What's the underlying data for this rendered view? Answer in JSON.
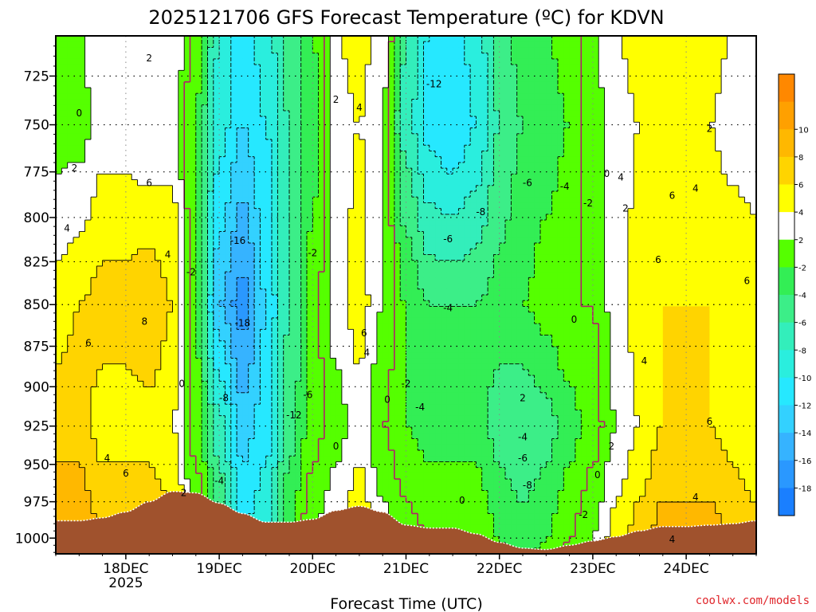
{
  "chart_data": {
    "type": "heatmap",
    "title": "2025121706 GFS Forecast Temperature (ºC) for KDVN",
    "xlabel": "Forecast Time (UTC)",
    "ylabel": "",
    "x_ticks": [
      {
        "value": 18.0,
        "label": "18DEC",
        "sublabel": "2025"
      },
      {
        "value": 19.0,
        "label": "19DEC"
      },
      {
        "value": 20.0,
        "label": "20DEC"
      },
      {
        "value": 21.0,
        "label": "21DEC"
      },
      {
        "value": 22.0,
        "label": "22DEC"
      },
      {
        "value": 23.0,
        "label": "23DEC"
      },
      {
        "value": 24.0,
        "label": "24DEC"
      }
    ],
    "xlim": [
      17.25,
      24.75
    ],
    "y_ticks": [
      725,
      750,
      775,
      800,
      825,
      850,
      875,
      900,
      925,
      950,
      975,
      1000
    ],
    "ylim": [
      705,
      1011
    ],
    "y_scale": "log-pressure",
    "grid": true,
    "colorbar": {
      "levels": [
        -20,
        -18,
        -16,
        -14,
        -12,
        -10,
        -8,
        -6,
        -4,
        -2,
        2,
        4,
        6,
        8,
        10,
        12
      ],
      "labels": [
        -18,
        -16,
        -14,
        -12,
        -10,
        -8,
        -6,
        -4,
        -2,
        2,
        4,
        6,
        8,
        10
      ],
      "colors": [
        "#1a7fff",
        "#2a98ff",
        "#36b3ff",
        "#33d1ff",
        "#26e8ff",
        "#2aeede",
        "#33eebb",
        "#3cee88",
        "#33ee55",
        "#55ff00",
        "#ffffff",
        "#ffff00",
        "#ffd400",
        "#ffb800",
        "#ffa000",
        "#ff8800"
      ]
    },
    "time_axis": [
      17.25,
      17.5,
      17.75,
      18.0,
      18.25,
      18.5,
      18.75,
      19.0,
      19.25,
      19.5,
      19.75,
      20.0,
      20.25,
      20.5,
      20.75,
      21.0,
      21.25,
      21.5,
      21.75,
      22.0,
      22.25,
      22.5,
      22.75,
      23.0,
      23.25,
      23.5,
      23.75,
      24.0,
      24.25,
      24.5,
      24.75
    ],
    "temp_at_750hPa": [
      1,
      1,
      3,
      3,
      2,
      3,
      -2,
      -9,
      -12,
      -10,
      -6,
      -3,
      3,
      4,
      2,
      -7,
      -11,
      -12,
      -10,
      -6,
      -4,
      -3,
      -2,
      1,
      3,
      4,
      5,
      5,
      4,
      3,
      3
    ],
    "temp_at_850hPa": [
      5,
      6,
      7,
      7,
      8,
      6,
      -2,
      -14,
      -17,
      -12,
      -6,
      -1,
      3,
      5,
      2,
      -2,
      -4,
      -4,
      -4,
      -3,
      -2,
      -1,
      0,
      0,
      3,
      5,
      6,
      6,
      6,
      6,
      5
    ],
    "temp_at_925hPa": [
      7,
      7,
      5,
      5,
      5,
      4,
      -1,
      -7,
      -13,
      -11,
      -5,
      -1,
      1,
      3,
      0,
      -2,
      -3,
      -3,
      -3,
      -5,
      -6,
      -5,
      -3,
      -1,
      2,
      4,
      6,
      6,
      6,
      5,
      4
    ],
    "surface_pressure": [
      988,
      988,
      986,
      982,
      975,
      968,
      969,
      976,
      983,
      989,
      989,
      987,
      981,
      978,
      982,
      991,
      993,
      993,
      997,
      1003,
      1007,
      1008,
      1005,
      1002,
      999,
      995,
      992,
      992,
      991,
      990,
      988
    ],
    "contour_labels": [
      {
        "t": 17.5,
        "p": 744,
        "text": "0"
      },
      {
        "t": 17.45,
        "p": 773,
        "text": "2"
      },
      {
        "t": 17.37,
        "p": 806,
        "text": "4"
      },
      {
        "t": 17.6,
        "p": 873,
        "text": "6"
      },
      {
        "t": 18.25,
        "p": 716,
        "text": "2"
      },
      {
        "t": 18.25,
        "p": 781,
        "text": "6"
      },
      {
        "t": 18.45,
        "p": 821,
        "text": "4"
      },
      {
        "t": 18.2,
        "p": 860,
        "text": "8"
      },
      {
        "t": 17.8,
        "p": 946,
        "text": "4"
      },
      {
        "t": 18.0,
        "p": 956,
        "text": "6"
      },
      {
        "t": 18.6,
        "p": 898,
        "text": "0"
      },
      {
        "t": 18.62,
        "p": 969,
        "text": "2"
      },
      {
        "t": 18.7,
        "p": 831,
        "text": "-2"
      },
      {
        "t": 19.05,
        "p": 907,
        "text": "-8"
      },
      {
        "t": 19.0,
        "p": 961,
        "text": "-4"
      },
      {
        "t": 19.2,
        "p": 813,
        "text": "-16"
      },
      {
        "t": 19.25,
        "p": 861,
        "text": "-18"
      },
      {
        "t": 19.8,
        "p": 918,
        "text": "-12"
      },
      {
        "t": 19.95,
        "p": 905,
        "text": "-6"
      },
      {
        "t": 20.0,
        "p": 820,
        "text": "-2"
      },
      {
        "t": 20.25,
        "p": 737,
        "text": "2"
      },
      {
        "t": 20.5,
        "p": 741,
        "text": "4"
      },
      {
        "t": 20.55,
        "p": 867,
        "text": "6"
      },
      {
        "t": 20.58,
        "p": 879,
        "text": "4"
      },
      {
        "t": 20.25,
        "p": 938,
        "text": "0"
      },
      {
        "t": 20.8,
        "p": 908,
        "text": "0"
      },
      {
        "t": 21.0,
        "p": 898,
        "text": "-2"
      },
      {
        "t": 21.3,
        "p": 729,
        "text": "-12"
      },
      {
        "t": 21.15,
        "p": 913,
        "text": "-4"
      },
      {
        "t": 21.45,
        "p": 852,
        "text": "-4"
      },
      {
        "t": 21.45,
        "p": 812,
        "text": "-6"
      },
      {
        "t": 21.8,
        "p": 797,
        "text": "-8"
      },
      {
        "t": 21.6,
        "p": 974,
        "text": "0"
      },
      {
        "t": 22.3,
        "p": 781,
        "text": "-6"
      },
      {
        "t": 22.7,
        "p": 783,
        "text": "-4"
      },
      {
        "t": 22.95,
        "p": 792,
        "text": "-2"
      },
      {
        "t": 22.25,
        "p": 907,
        "text": "2"
      },
      {
        "t": 22.25,
        "p": 932,
        "text": "-4"
      },
      {
        "t": 22.25,
        "p": 946,
        "text": "-6"
      },
      {
        "t": 22.3,
        "p": 964,
        "text": "-8"
      },
      {
        "t": 22.9,
        "p": 984,
        "text": "-2"
      },
      {
        "t": 22.8,
        "p": 859,
        "text": "0"
      },
      {
        "t": 23.15,
        "p": 776,
        "text": "0"
      },
      {
        "t": 23.3,
        "p": 778,
        "text": "4"
      },
      {
        "t": 23.35,
        "p": 795,
        "text": "2"
      },
      {
        "t": 23.7,
        "p": 824,
        "text": "6"
      },
      {
        "t": 23.55,
        "p": 884,
        "text": "4"
      },
      {
        "t": 23.85,
        "p": 788,
        "text": "6"
      },
      {
        "t": 24.1,
        "p": 784,
        "text": "4"
      },
      {
        "t": 24.25,
        "p": 752,
        "text": "2"
      },
      {
        "t": 24.65,
        "p": 836,
        "text": "6"
      },
      {
        "t": 24.25,
        "p": 922,
        "text": "6"
      },
      {
        "t": 24.1,
        "p": 972,
        "text": "4"
      },
      {
        "t": 23.85,
        "p": 1001,
        "text": "4"
      },
      {
        "t": 23.2,
        "p": 938,
        "text": "2"
      },
      {
        "t": 23.05,
        "p": 957,
        "text": "0"
      }
    ]
  },
  "credit": "coolwx.com/models"
}
